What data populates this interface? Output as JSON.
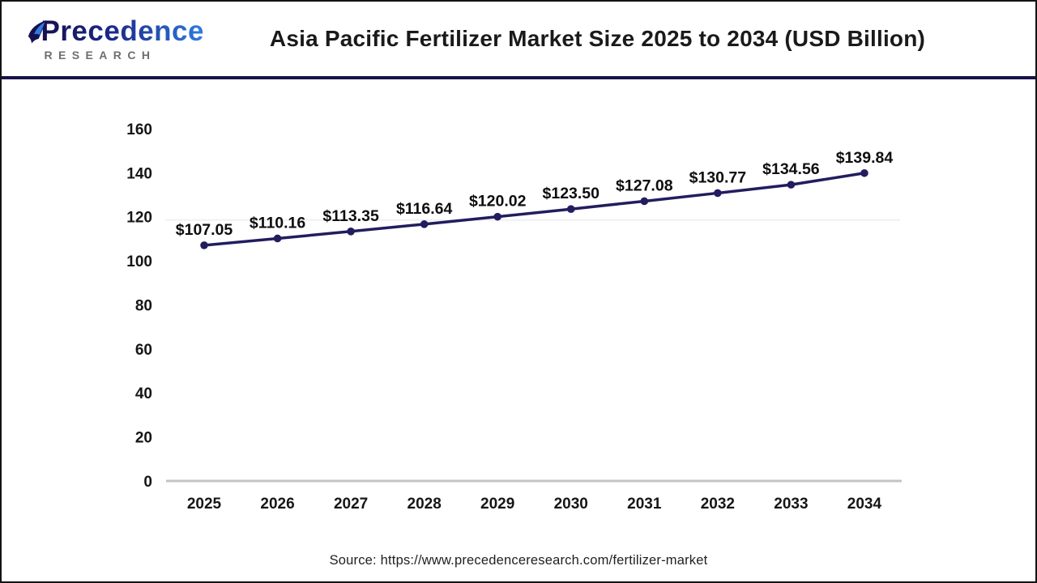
{
  "header": {
    "logo": {
      "line1": "Precedence",
      "line2": "RESEARCH"
    },
    "title": "Asia Pacific Fertilizer Market Size 2025 to 2034 (USD Billion)"
  },
  "chart_data": {
    "type": "line",
    "title": "Asia Pacific Fertilizer Market Size 2025 to 2034 (USD Billion)",
    "categories": [
      "2025",
      "2026",
      "2027",
      "2028",
      "2029",
      "2030",
      "2031",
      "2032",
      "2033",
      "2034"
    ],
    "values": [
      107.05,
      110.16,
      113.35,
      116.64,
      120.02,
      123.5,
      127.08,
      130.77,
      134.56,
      139.84
    ],
    "point_labels": [
      "$107.05",
      "$110.16",
      "$113.35",
      "$116.64",
      "$120.02",
      "$123.50",
      "$127.08",
      "$130.77",
      "$134.56",
      "$139.84"
    ],
    "xlabel": "",
    "ylabel": "",
    "ylim": [
      0,
      160
    ],
    "yticks": [
      160,
      140,
      120,
      100,
      80,
      60,
      40,
      20,
      0
    ],
    "faint_gridlines": [
      120
    ],
    "legend": "none",
    "line_color": "#221d5e",
    "marker": "circle"
  },
  "source": {
    "text": "Source: https://www.precedenceresearch.com/fertilizer-market"
  },
  "colors": {
    "header_rule": "#18124a",
    "outer_border": "#141414",
    "axis_line": "#c4c4c4",
    "faint_gridline": "#f0f0f0",
    "label_text": "#161616"
  }
}
